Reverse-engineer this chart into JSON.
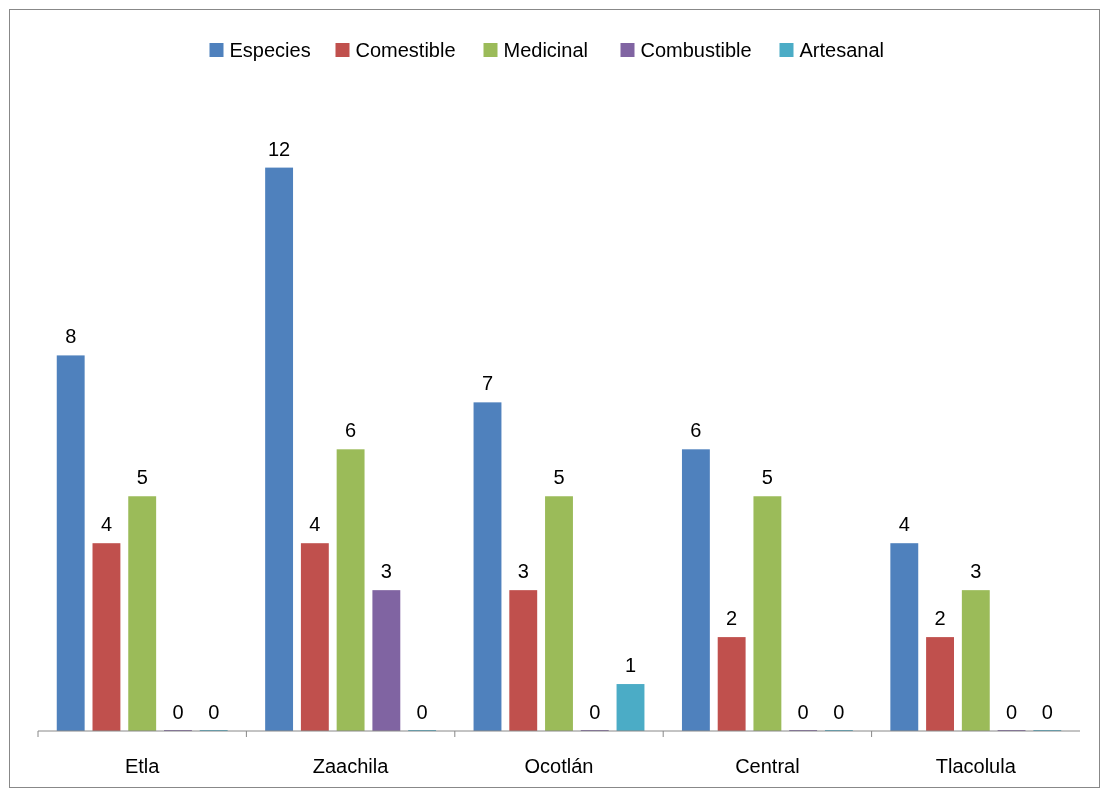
{
  "chart_data": {
    "type": "bar",
    "categories": [
      "Etla",
      "Zaachila",
      "Ocotlán",
      "Central",
      "Tlacolula"
    ],
    "series": [
      {
        "name": "Especies",
        "color": "#4f81bd",
        "values": [
          8,
          12,
          7,
          6,
          4
        ]
      },
      {
        "name": "Comestible",
        "color": "#c0504d",
        "values": [
          4,
          4,
          3,
          2,
          2
        ]
      },
      {
        "name": "Medicinal",
        "color": "#9bbb59",
        "values": [
          5,
          6,
          5,
          5,
          3
        ]
      },
      {
        "name": "Combustible",
        "color": "#8064a2",
        "values": [
          0,
          3,
          0,
          0,
          0
        ]
      },
      {
        "name": "Artesanal",
        "color": "#4bacc6",
        "values": [
          0,
          0,
          1,
          0,
          0
        ]
      }
    ],
    "data_labels": true,
    "legend": "top",
    "grid": false
  }
}
